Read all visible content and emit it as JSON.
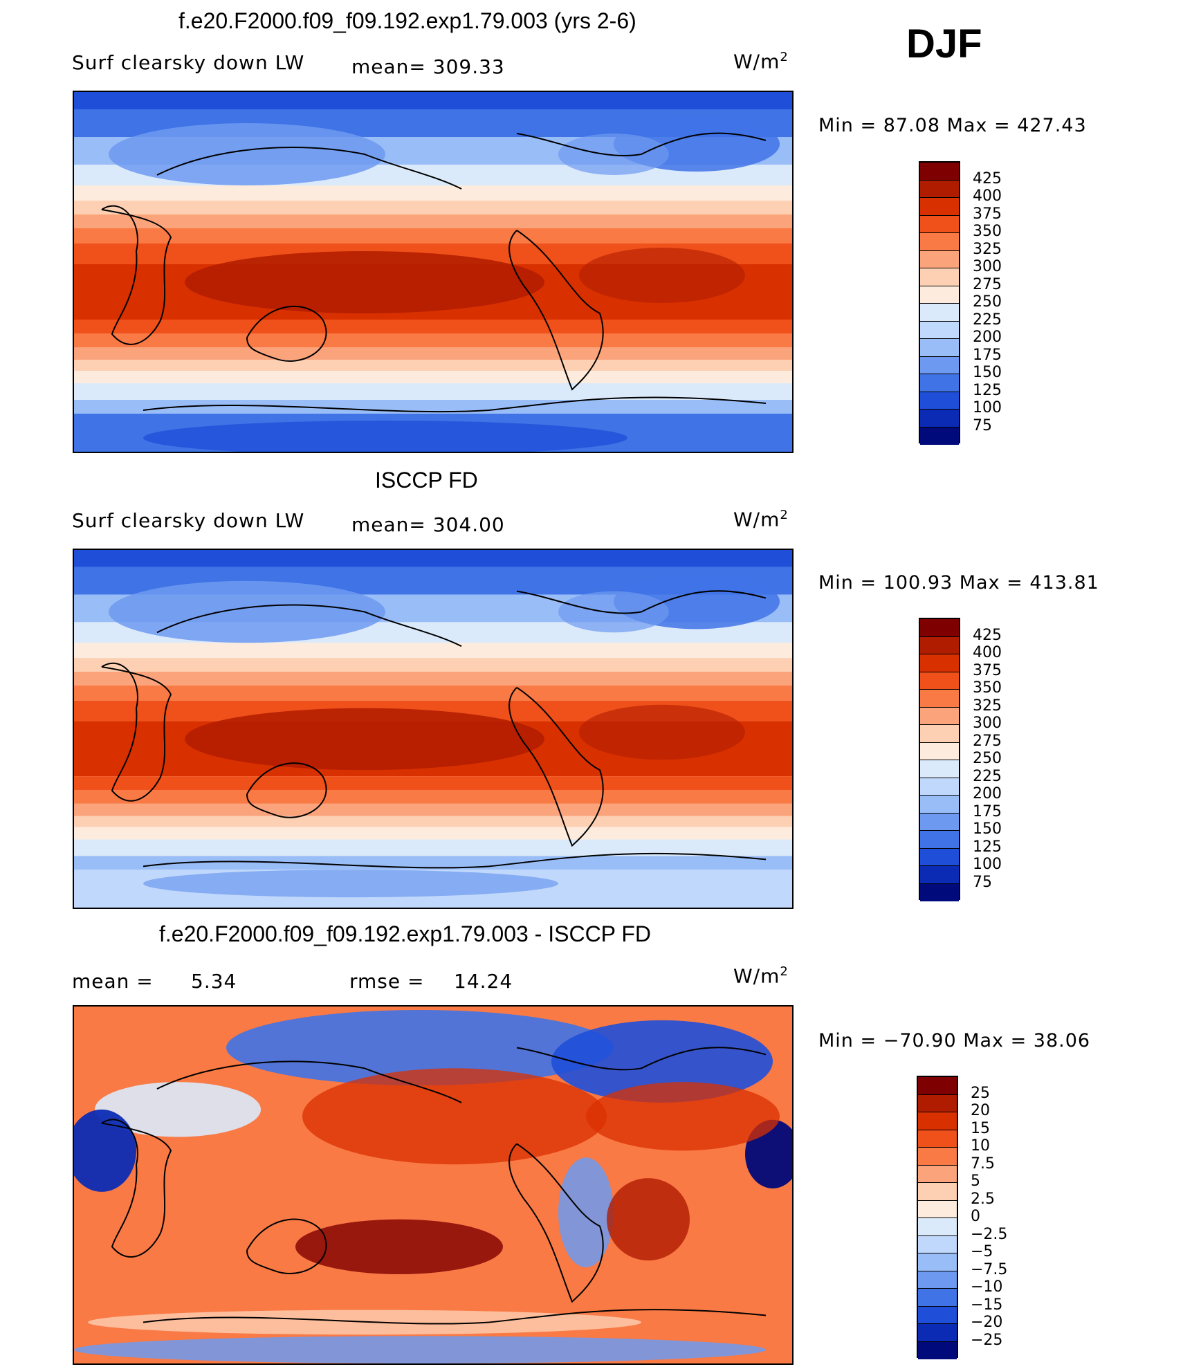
{
  "season": "DJF",
  "panels": [
    {
      "title": "f.e20.F2000.f09_f09.192.exp1.79.003 (yrs 2-6)",
      "variable": "Surf clearsky down LW",
      "mean_text": "mean= 309.33",
      "units": "W/m",
      "units_sup": "2",
      "minmax": "Min =   87.08 Max =  427.43",
      "colorbar": {
        "labels": [
          "425",
          "400",
          "375",
          "350",
          "325",
          "300",
          "275",
          "250",
          "225",
          "200",
          "175",
          "150",
          "125",
          "100",
          "75"
        ],
        "colors": [
          "#7f0000",
          "#b01c00",
          "#d93000",
          "#f0501a",
          "#f97a45",
          "#fba47c",
          "#fdd0b3",
          "#fdebdd",
          "#dbeafb",
          "#c0d8fb",
          "#99bdf7",
          "#6d9af0",
          "#3f73e6",
          "#1f4fd8",
          "#0c2bb4",
          "#000a7a"
        ]
      },
      "map_style": "model"
    },
    {
      "title": "ISCCP FD",
      "variable": "Surf clearsky down LW",
      "mean_text": "mean= 304.00",
      "units": "W/m",
      "units_sup": "2",
      "minmax": "Min = 100.93 Max = 413.81",
      "colorbar": {
        "labels": [
          "425",
          "400",
          "375",
          "350",
          "325",
          "300",
          "275",
          "250",
          "225",
          "200",
          "175",
          "150",
          "125",
          "100",
          "75"
        ],
        "colors": [
          "#7f0000",
          "#b01c00",
          "#d93000",
          "#f0501a",
          "#f97a45",
          "#fba47c",
          "#fdd0b3",
          "#fdebdd",
          "#dbeafb",
          "#c0d8fb",
          "#99bdf7",
          "#6d9af0",
          "#3f73e6",
          "#1f4fd8",
          "#0c2bb4",
          "#000a7a"
        ]
      },
      "map_style": "obs"
    },
    {
      "title": "f.e20.F2000.f09_f09.192.exp1.79.003 - ISCCP FD",
      "mean_label": "mean =",
      "mean_value": "5.34",
      "rmse_label": "rmse =",
      "rmse_value": "14.24",
      "units": "W/m",
      "units_sup": "2",
      "minmax": "Min = −70.90 Max =   38.06",
      "colorbar": {
        "labels": [
          "25",
          "20",
          "15",
          "10",
          "7.5",
          "5",
          "2.5",
          "0",
          "−2.5",
          "−5",
          "−7.5",
          "−10",
          "−15",
          "−20",
          "−25"
        ],
        "colors": [
          "#7f0000",
          "#b01c00",
          "#d93000",
          "#f0501a",
          "#f97a45",
          "#fba47c",
          "#fdd0b3",
          "#fdebdd",
          "#dbeafb",
          "#c0d8fb",
          "#99bdf7",
          "#6d9af0",
          "#3f73e6",
          "#1f4fd8",
          "#0c2bb4",
          "#000a7a"
        ]
      },
      "map_style": "diff"
    }
  ]
}
